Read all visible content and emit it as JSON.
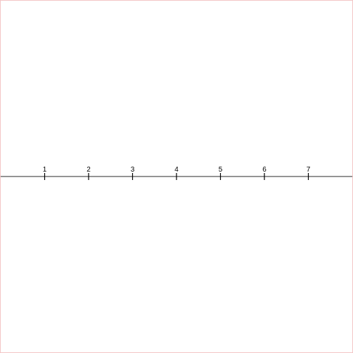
{
  "number_line": {
    "min": 0,
    "max": 8,
    "ticks": [
      {
        "value": 1,
        "label": "1"
      },
      {
        "value": 2,
        "label": "2"
      },
      {
        "value": 3,
        "label": "3"
      },
      {
        "value": 4,
        "label": "4"
      },
      {
        "value": 5,
        "label": "5"
      },
      {
        "value": 6,
        "label": "6"
      },
      {
        "value": 7,
        "label": "7"
      }
    ],
    "colors": {
      "axis": "#707070",
      "tick": "#000000",
      "frame": "#f3c6c6"
    }
  }
}
